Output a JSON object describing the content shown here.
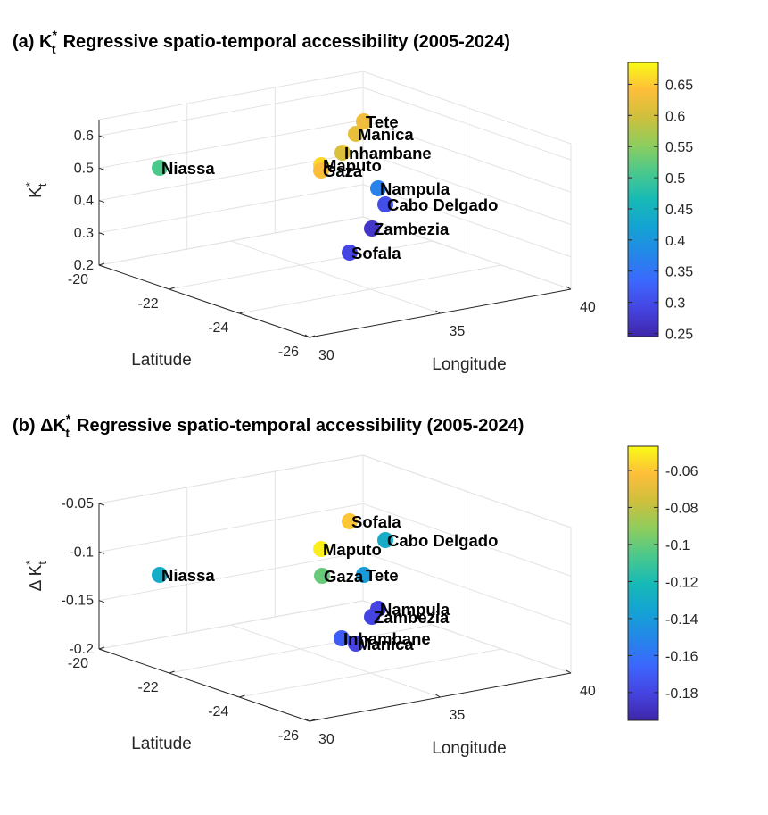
{
  "chart_data": [
    {
      "type": "scatter",
      "panel": "(a)",
      "title_symbol_base": "K",
      "title_symbol_sup": "*",
      "title_symbol_sub": "t",
      "title_text": "Regressive  spatio-temporal  accessibility  (2005-2024)",
      "xlabel": "Longitude",
      "ylabel": "Latitude",
      "zlabel_base": "K",
      "zlabel_sup": "*",
      "zlabel_sub": "t",
      "xticks": [
        30,
        35,
        40
      ],
      "yticks": [
        -20,
        -22,
        -24,
        -26
      ],
      "zticks": [
        "0.2",
        "0.3",
        "0.4",
        "0.5",
        "0.6"
      ],
      "zlim": [
        0.2,
        0.65
      ],
      "colorbar_ticks": [
        "0.25",
        "0.3",
        "0.35",
        "0.4",
        "0.45",
        "0.5",
        "0.55",
        "0.6",
        "0.65"
      ],
      "colorbar_lim": [
        0.245,
        0.685
      ],
      "colormap": "parula",
      "points": [
        {
          "name": "Niassa",
          "value": 0.51
        },
        {
          "name": "Tete",
          "value": 0.63
        },
        {
          "name": "Manica",
          "value": 0.62
        },
        {
          "name": "Inhambane",
          "value": 0.61
        },
        {
          "name": "Maputo",
          "value": 0.66
        },
        {
          "name": "Gaza",
          "value": 0.64
        },
        {
          "name": "Nampula",
          "value": 0.37
        },
        {
          "name": "Cabo Delgado",
          "value": 0.3
        },
        {
          "name": "Zambezia",
          "value": 0.27
        },
        {
          "name": "Sofala",
          "value": 0.29
        }
      ]
    },
    {
      "type": "scatter",
      "panel": "(b)",
      "title_symbol_base": "ΔK",
      "title_symbol_sup": "*",
      "title_symbol_sub": "t",
      "title_text": "Regressive  spatio-temporal  accessibility  (2005-2024)",
      "xlabel": "Longitude",
      "ylabel": "Latitude",
      "zlabel_base": "Δ  K",
      "zlabel_sup": "*",
      "zlabel_sub": "t",
      "xticks": [
        30,
        35,
        40
      ],
      "yticks": [
        -20,
        -22,
        -24,
        -26
      ],
      "zticks": [
        "-0.2",
        "-0.15",
        "-0.1",
        "-0.05"
      ],
      "zlim": [
        -0.2,
        -0.05
      ],
      "colorbar_ticks": [
        "-0.18",
        "-0.16",
        "-0.14",
        "-0.12",
        "-0.1",
        "-0.08",
        "-0.06"
      ],
      "colorbar_lim": [
        -0.195,
        -0.047
      ],
      "colormap": "parula",
      "points": [
        {
          "name": "Niassa",
          "value": -0.13
        },
        {
          "name": "Sofala",
          "value": -0.06
        },
        {
          "name": "Cabo Delgado",
          "value": -0.13
        },
        {
          "name": "Maputo",
          "value": -0.05
        },
        {
          "name": "Tete",
          "value": -0.14
        },
        {
          "name": "Gaza",
          "value": -0.1
        },
        {
          "name": "Nampula",
          "value": -0.18
        },
        {
          "name": "Zambezia",
          "value": -0.18
        },
        {
          "name": "Inhambane",
          "value": -0.17
        },
        {
          "name": "Manica",
          "value": -0.18
        }
      ]
    }
  ]
}
